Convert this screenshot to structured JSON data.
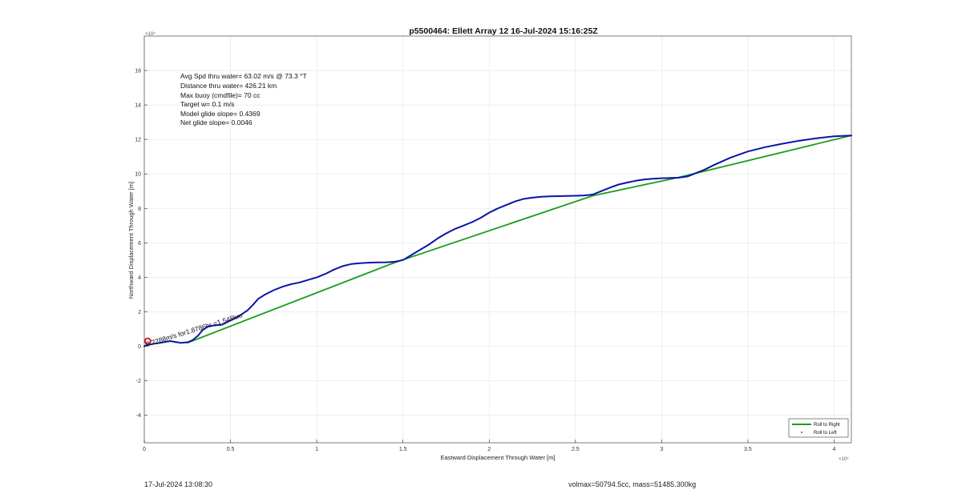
{
  "chart_data": {
    "type": "line",
    "title": "p5500464: Ellett Array 12 16-Jul-2024 15:16:25Z",
    "xlabel": "Eastward Displacement Through Water [m]",
    "ylabel": "Northward Displacement Through Water [m]",
    "x_exponent_label": "×10⁵",
    "y_exponent_label": "×10⁴",
    "x_unit_scale": 100000,
    "y_unit_scale": 10000,
    "xlim": [
      0,
      410000
    ],
    "ylim": [
      -56000,
      180000
    ],
    "xticks": [
      0,
      50000,
      100000,
      150000,
      200000,
      250000,
      300000,
      350000,
      400000
    ],
    "xtick_labels": [
      "0",
      "0.5",
      "1",
      "1.5",
      "2",
      "2.5",
      "3",
      "3.5",
      "4"
    ],
    "yticks": [
      -40000,
      -20000,
      0,
      20000,
      40000,
      60000,
      80000,
      100000,
      120000,
      140000,
      160000
    ],
    "ytick_labels": [
      "-4",
      "-2",
      "0",
      "2",
      "4",
      "6",
      "8",
      "10",
      "12",
      "14",
      "16"
    ],
    "grid": true,
    "legend_position": "bottom-right",
    "series": [
      {
        "name": "",
        "color": "#0a14a8",
        "x": [
          0,
          1000,
          3000,
          6000,
          9000,
          12000,
          15000,
          18000,
          21000,
          25000,
          28000,
          31000,
          34000,
          37000,
          40000,
          45000,
          50000,
          55000,
          60000,
          63000,
          66000,
          70000,
          75000,
          80000,
          85000,
          90000,
          95000,
          100000,
          105000,
          110000,
          115000,
          120000,
          125000,
          130000,
          135000,
          140000,
          145000,
          150000,
          155000,
          160000,
          165000,
          170000,
          175000,
          180000,
          185000,
          190000,
          195000,
          200000,
          205000,
          210000,
          215000,
          220000,
          225000,
          230000,
          235000,
          240000,
          245000,
          250000,
          255000,
          260000,
          265000,
          270000,
          275000,
          280000,
          285000,
          290000,
          295000,
          300000,
          305000,
          310000,
          315000,
          320000,
          325000,
          330000,
          340000,
          350000,
          360000,
          370000,
          380000,
          390000,
          400000,
          410000
        ],
        "y": [
          0,
          500,
          1000,
          1500,
          2000,
          2500,
          3000,
          2500,
          2000,
          2300,
          3500,
          6000,
          9500,
          11500,
          12000,
          12500,
          15000,
          17500,
          21000,
          24000,
          27500,
          30000,
          32500,
          34500,
          36000,
          37000,
          38500,
          40000,
          42000,
          44500,
          46500,
          47700,
          48200,
          48500,
          48600,
          48700,
          49000,
          50000,
          53000,
          56000,
          59000,
          62500,
          65500,
          68000,
          70000,
          72000,
          74500,
          77500,
          80000,
          82000,
          84000,
          85500,
          86200,
          86700,
          87000,
          87100,
          87200,
          87300,
          87500,
          88000,
          90000,
          92000,
          93800,
          95000,
          96000,
          96800,
          97200,
          97500,
          97700,
          97800,
          98500,
          100500,
          102500,
          105000,
          109500,
          113000,
          115500,
          117500,
          119300,
          120700,
          121800,
          122300
        ]
      },
      {
        "name": "Roll to Right",
        "color": "#1a9e1a",
        "x": [
          25000,
          145000,
          260000,
          310000,
          410000
        ],
        "y": [
          2000,
          48500,
          87300,
          98000,
          122300
        ]
      },
      {
        "name": "Roll to Left",
        "color": "#e0201c",
        "marker_only": true,
        "x": [],
        "y": []
      }
    ],
    "start_marker": {
      "x": 2000,
      "y": 3000,
      "color": "#cc1111"
    },
    "annotations": [
      "Avg Spd thru water= 63.02 m/s @  73.3 °T",
      "Distance thru water= 426.21 km",
      "Max buoy (cmdfile)= 70 cc",
      "Target w= 0.1 m/s",
      "Model glide slope= 0.4369",
      "Net glide slope= 0.0046"
    ],
    "rotated_annotation": "0.2288m/s for1.8786hr =1.548km"
  },
  "footer": {
    "timestamp": "17-Jul-2024 13:08:30",
    "stats": "volmax=50794.5cc, mass=51485.300kg"
  }
}
